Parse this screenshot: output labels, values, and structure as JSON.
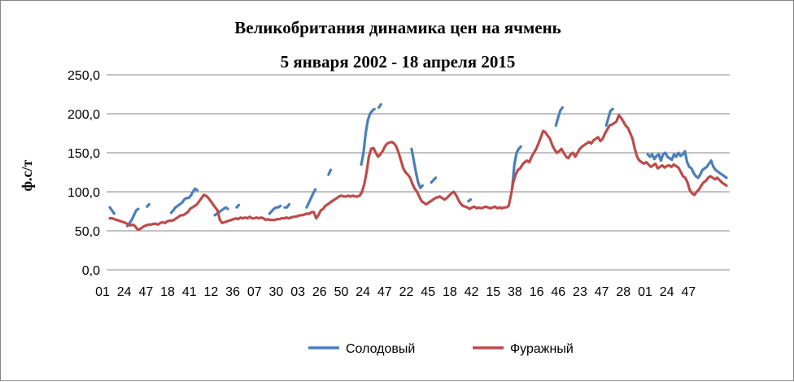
{
  "chart_data": {
    "type": "line",
    "title": [
      "Великобритания  динамика цен на ячмень",
      "5 января 2002 - 18 апреля 2015"
    ],
    "ylabel": "ф.с/т",
    "xlabel": "",
    "ylim": [
      0,
      250
    ],
    "yticks": [
      "0,0",
      "50,0",
      "100,0",
      "150,0",
      "200,0",
      "250,0"
    ],
    "x_tick_labels": [
      "01",
      "24",
      "47",
      "18",
      "41",
      "12",
      "36",
      "07",
      "30",
      "03",
      "26",
      "50",
      "24",
      "47",
      "22",
      "45",
      "18",
      "42",
      "15",
      "38",
      "16",
      "46",
      "23",
      "47",
      "28",
      "01",
      "24",
      "47"
    ],
    "grid": "horizontal",
    "legend_position": "bottom",
    "series": [
      {
        "name": "Солодовый",
        "color": "#4A7EBB",
        "values": [
          80,
          76,
          72,
          null,
          null,
          null,
          null,
          null,
          56,
          60,
          64,
          70,
          76,
          78,
          null,
          null,
          null,
          81,
          84,
          null,
          null,
          null,
          null,
          null,
          null,
          null,
          null,
          null,
          73,
          76,
          80,
          82,
          84,
          86,
          90,
          92,
          92,
          95,
          100,
          104,
          102,
          null,
          null,
          null,
          null,
          null,
          null,
          null,
          70,
          72,
          74,
          76,
          78,
          80,
          78,
          null,
          null,
          null,
          80,
          83,
          null,
          null,
          null,
          null,
          null,
          null,
          null,
          null,
          null,
          null,
          null,
          null,
          null,
          72,
          75,
          78,
          80,
          80,
          82,
          null,
          80,
          80,
          84,
          null,
          null,
          null,
          null,
          null,
          null,
          null,
          80,
          86,
          92,
          98,
          103,
          null,
          null,
          null,
          null,
          null,
          122,
          128,
          null,
          null,
          null,
          null,
          null,
          null,
          null,
          null,
          null,
          null,
          null,
          null,
          null,
          135,
          150,
          175,
          192,
          200,
          204,
          206,
          null,
          208,
          212,
          null,
          null,
          null,
          null,
          null,
          null,
          null,
          null,
          null,
          null,
          null,
          null,
          null,
          155,
          140,
          125,
          112,
          105,
          108,
          null,
          null,
          null,
          112,
          115,
          118,
          null,
          null,
          null,
          null,
          null,
          null,
          null,
          null,
          null,
          null,
          null,
          null,
          null,
          null,
          88,
          90,
          null,
          null,
          null,
          null,
          null,
          null,
          null,
          null,
          null,
          null,
          null,
          null,
          null,
          null,
          null,
          null,
          null,
          null,
          105,
          135,
          150,
          155,
          158,
          null,
          null,
          null,
          null,
          null,
          null,
          null,
          null,
          null,
          null,
          null,
          null,
          null,
          null,
          null,
          185,
          195,
          204,
          208,
          null,
          null,
          null,
          null,
          null,
          null,
          null,
          null,
          null,
          null,
          null,
          null,
          null,
          null,
          null,
          null,
          null,
          null,
          null,
          185,
          195,
          204,
          206,
          null,
          null,
          null,
          null,
          null,
          null,
          null,
          null,
          null,
          null,
          null,
          null,
          null,
          null,
          null,
          148,
          145,
          148,
          142,
          146,
          148,
          140,
          148,
          150,
          145,
          143,
          141,
          148,
          145,
          150,
          146,
          148,
          152,
          138,
          132,
          130,
          124,
          120,
          118,
          122,
          128,
          130,
          132,
          136,
          140,
          132,
          128,
          126,
          124,
          122,
          120,
          118
        ]
      },
      {
        "name": "Фуражный",
        "color": "#BE4B48",
        "values": [
          66,
          66,
          65,
          64,
          63,
          62,
          61,
          60,
          58,
          57,
          58,
          56,
          52,
          52,
          54,
          56,
          57,
          58,
          58,
          59,
          59,
          58,
          60,
          61,
          60,
          62,
          63,
          63,
          64,
          66,
          68,
          70,
          70,
          72,
          74,
          78,
          80,
          82,
          84,
          88,
          92,
          96,
          95,
          92,
          88,
          84,
          80,
          76,
          64,
          60,
          61,
          62,
          63,
          64,
          65,
          66,
          65,
          67,
          66,
          67,
          66,
          68,
          66,
          66,
          67,
          66,
          67,
          66,
          64,
          65,
          64,
          64,
          64,
          65,
          65,
          66,
          66,
          67,
          66,
          67,
          68,
          68,
          69,
          70,
          70,
          71,
          72,
          72,
          74,
          74,
          66,
          70,
          76,
          78,
          82,
          84,
          86,
          88,
          90,
          92,
          94,
          95,
          94,
          94,
          95,
          94,
          95,
          94,
          94,
          95,
          100,
          110,
          125,
          145,
          155,
          156,
          150,
          145,
          148,
          152,
          158,
          162,
          163,
          164,
          162,
          158,
          150,
          140,
          130,
          125,
          122,
          118,
          110,
          104,
          100,
          94,
          88,
          86,
          84,
          86,
          88,
          90,
          92,
          93,
          94,
          92,
          90,
          92,
          95,
          98,
          100,
          96,
          90,
          85,
          82,
          81,
          80,
          78,
          80,
          81,
          79,
          80,
          79,
          80,
          81,
          80,
          79,
          80,
          81,
          79,
          80,
          79,
          80,
          80,
          82,
          96,
          112,
          122,
          128,
          130,
          135,
          138,
          140,
          138,
          145,
          150,
          155,
          162,
          170,
          178,
          176,
          172,
          168,
          160,
          154,
          150,
          152,
          155,
          150,
          145,
          143,
          148,
          150,
          145,
          150,
          155,
          158,
          160,
          162,
          164,
          162,
          166,
          168,
          170,
          165,
          168,
          175,
          180,
          185,
          186,
          188,
          190,
          198,
          195,
          190,
          185,
          182,
          175,
          168,
          155,
          145,
          140,
          138,
          136,
          138,
          135,
          132,
          134,
          136,
          130,
          132,
          134,
          131,
          133,
          134,
          132,
          135,
          133,
          131,
          126,
          120,
          118,
          112,
          102,
          98,
          96,
          100,
          103,
          108,
          112,
          114,
          118,
          120,
          118,
          116,
          118,
          115,
          112,
          110,
          108
        ]
      }
    ]
  }
}
